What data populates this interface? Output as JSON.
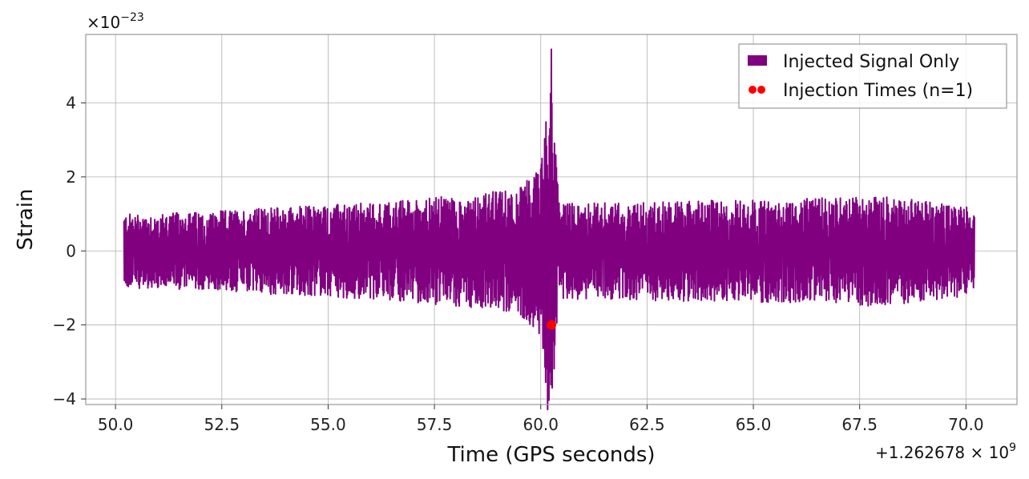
{
  "chart_data": {
    "type": "line",
    "title": "",
    "xlabel": "Time (GPS seconds)",
    "ylabel": "Strain",
    "x_offset_label": "+1.262678 × 10",
    "x_offset_exponent": "9",
    "y_scale_label": "×10",
    "y_scale_exponent": "−23",
    "xlim": [
      49.3,
      71.2
    ],
    "ylim": [
      -4.15,
      5.85
    ],
    "xticks": [
      50.0,
      52.5,
      55.0,
      57.5,
      60.0,
      62.5,
      65.0,
      67.5,
      70.0
    ],
    "xtick_labels": [
      "50.0",
      "52.5",
      "55.0",
      "57.5",
      "60.0",
      "62.5",
      "65.0",
      "67.5",
      "70.0"
    ],
    "yticks": [
      -4,
      -2,
      0,
      2,
      4
    ],
    "ytick_labels": [
      "−4",
      "−2",
      "0",
      "2",
      "4"
    ],
    "grid": true,
    "legend_position": "top-right",
    "series": [
      {
        "name": "Injected Signal Only",
        "kind": "line",
        "color": "#800080",
        "x_range": [
          50.2,
          70.2
        ],
        "envelope": [
          [
            50.2,
            1.0
          ],
          [
            52.0,
            1.05
          ],
          [
            54.0,
            1.2
          ],
          [
            56.0,
            1.3
          ],
          [
            57.5,
            1.45
          ],
          [
            58.5,
            1.55
          ],
          [
            59.5,
            1.7
          ],
          [
            59.9,
            2.2
          ],
          [
            60.05,
            2.6
          ],
          [
            60.2,
            5.0
          ],
          [
            60.3,
            3.5
          ],
          [
            60.45,
            1.3
          ],
          [
            61.0,
            1.3
          ],
          [
            63.0,
            1.35
          ],
          [
            66.0,
            1.4
          ],
          [
            68.0,
            1.5
          ],
          [
            70.2,
            1.2
          ]
        ],
        "peaks": [
          {
            "x": 60.25,
            "y": 5.45
          },
          {
            "x": 60.27,
            "y": -3.7
          },
          {
            "x": 60.1,
            "y": 2.65
          },
          {
            "x": 60.05,
            "y": -2.3
          }
        ]
      },
      {
        "name": "Injection Times (n=1)",
        "kind": "scatter",
        "color": "#ff0000",
        "x": [
          60.25
        ],
        "y": [
          -2.0
        ]
      }
    ]
  }
}
